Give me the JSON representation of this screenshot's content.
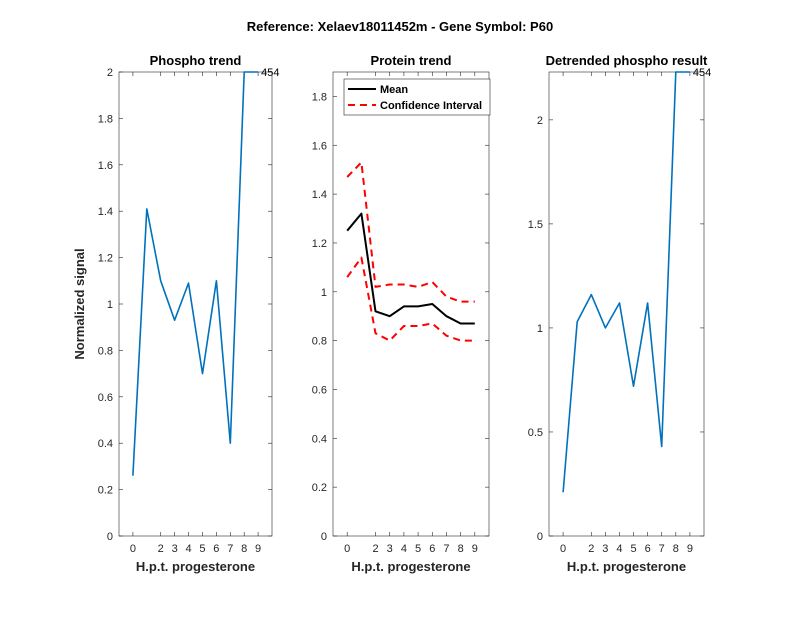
{
  "figure_title": "Reference:  Xelaev18011452m - Gene Symbol:  P60",
  "chart_data": [
    {
      "type": "line",
      "title": "Phospho trend",
      "xlabel": "H.p.t. progesterone",
      "ylabel": "Normalized signal",
      "x": [
        0,
        1,
        2,
        3,
        4,
        5,
        6,
        7,
        8,
        9
      ],
      "xlim": [
        -1,
        10
      ],
      "ylim": [
        0,
        2
      ],
      "yticks": [
        0,
        0.2,
        0.4,
        0.6,
        0.8,
        1,
        1.2,
        1.4,
        1.6,
        1.8,
        2
      ],
      "ytick_labels": [
        "0",
        "0.2",
        "0.4",
        "0.6",
        "0.8",
        "1",
        "1.2",
        "1.4",
        "1.6",
        "1.8",
        "2"
      ],
      "xticks": [
        0,
        2,
        3,
        4,
        5,
        6,
        7,
        8,
        9
      ],
      "series": [
        {
          "name": "Phospho",
          "color": "#0072BD",
          "style": "solid",
          "x": [
            0,
            1,
            2,
            3,
            4,
            5,
            6,
            7,
            8,
            9
          ],
          "values": [
            0.26,
            1.41,
            1.1,
            0.93,
            1.09,
            0.7,
            1.1,
            0.4,
            2.0,
            2.0
          ]
        }
      ],
      "annotation": {
        "text": "454",
        "x": 9,
        "y": 2.0
      }
    },
    {
      "type": "line",
      "title": "Protein trend",
      "xlabel": "H.p.t. progesterone",
      "ylabel": "",
      "x": [
        0,
        1,
        2,
        3,
        4,
        5,
        6,
        7,
        8,
        9
      ],
      "xlim": [
        -1,
        10
      ],
      "ylim": [
        0,
        1.9
      ],
      "yticks": [
        0,
        0.2,
        0.4,
        0.6,
        0.8,
        1,
        1.2,
        1.4,
        1.6,
        1.8
      ],
      "ytick_labels": [
        "0",
        "0.2",
        "0.4",
        "0.6",
        "0.8",
        "1",
        "1.2",
        "1.4",
        "1.6",
        "1.8"
      ],
      "xticks": [
        0,
        2,
        3,
        4,
        5,
        6,
        7,
        8,
        9
      ],
      "legend": {
        "position": "top-left",
        "entries": [
          "Mean",
          "Confidence Interval"
        ]
      },
      "series": [
        {
          "name": "Mean",
          "color": "#000000",
          "style": "solid",
          "x": [
            0,
            1,
            2,
            3,
            4,
            5,
            6,
            7,
            8,
            9
          ],
          "values": [
            1.25,
            1.32,
            0.92,
            0.9,
            0.94,
            0.94,
            0.95,
            0.9,
            0.87,
            0.87
          ]
        },
        {
          "name": "Confidence Interval",
          "color": "#FF0000",
          "style": "dashed",
          "x": [
            0,
            1,
            2,
            3,
            4,
            5,
            6,
            7,
            8,
            9
          ],
          "values": [
            1.47,
            1.53,
            1.02,
            1.03,
            1.03,
            1.02,
            1.04,
            0.98,
            0.96,
            0.96
          ]
        },
        {
          "name": "Confidence Interval (lower)",
          "color": "#FF0000",
          "style": "dashed",
          "x": [
            0,
            1,
            2,
            3,
            4,
            5,
            6,
            7,
            8,
            9
          ],
          "values": [
            1.06,
            1.14,
            0.83,
            0.8,
            0.86,
            0.86,
            0.87,
            0.82,
            0.8,
            0.8
          ]
        }
      ]
    },
    {
      "type": "line",
      "title": "Detrended phospho result",
      "xlabel": "H.p.t. progesterone",
      "ylabel": "",
      "x": [
        0,
        1,
        2,
        3,
        4,
        5,
        6,
        7,
        8,
        9
      ],
      "xlim": [
        -1,
        10
      ],
      "ylim": [
        0,
        2.23
      ],
      "yticks": [
        0,
        0.5,
        1,
        1.5,
        2
      ],
      "ytick_labels": [
        "0",
        "0.5",
        "1",
        "1.5",
        "2"
      ],
      "xticks": [
        0,
        2,
        3,
        4,
        5,
        6,
        7,
        8,
        9
      ],
      "series": [
        {
          "name": "Detrended",
          "color": "#0072BD",
          "style": "solid",
          "x": [
            0,
            1,
            2,
            3,
            4,
            5,
            6,
            7,
            8,
            9
          ],
          "values": [
            0.21,
            1.03,
            1.16,
            1.0,
            1.12,
            0.72,
            1.12,
            0.43,
            2.23,
            2.23
          ]
        }
      ],
      "annotation": {
        "text": "454",
        "x": 9,
        "y": 2.23
      }
    }
  ]
}
